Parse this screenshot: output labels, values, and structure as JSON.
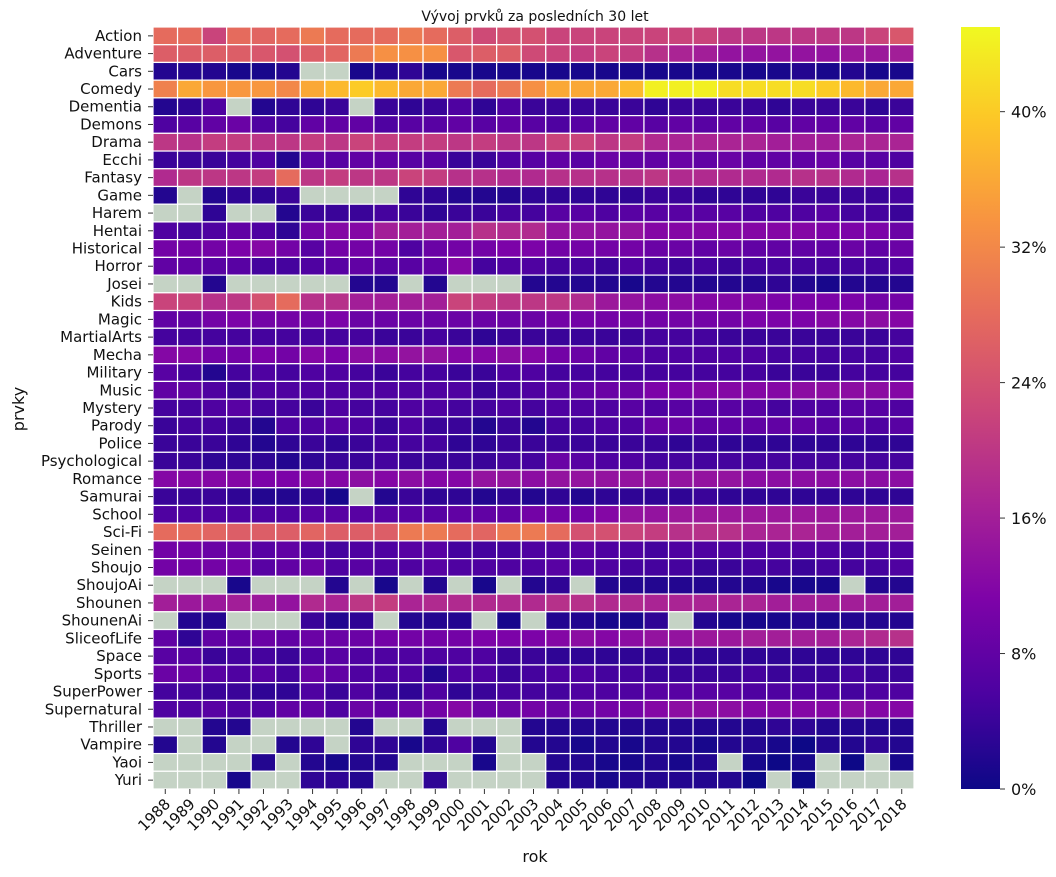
{
  "chart_data": {
    "type": "heatmap",
    "title": "Vývoj prvků za posledních 30 let",
    "xlabel": "rok",
    "ylabel": "prvky",
    "x_categories": [
      "1988",
      "1989",
      "1990",
      "1991",
      "1992",
      "1993",
      "1994",
      "1995",
      "1996",
      "1997",
      "1998",
      "1999",
      "2000",
      "2001",
      "2002",
      "2003",
      "2004",
      "2005",
      "2006",
      "2007",
      "2008",
      "2009",
      "2010",
      "2011",
      "2012",
      "2013",
      "2014",
      "2015",
      "2016",
      "2017",
      "2018"
    ],
    "y_categories": [
      "Action",
      "Adventure",
      "Cars",
      "Comedy",
      "Dementia",
      "Demons",
      "Drama",
      "Ecchi",
      "Fantasy",
      "Game",
      "Harem",
      "Hentai",
      "Historical",
      "Horror",
      "Josei",
      "Kids",
      "Magic",
      "MartialArts",
      "Mecha",
      "Military",
      "Music",
      "Mystery",
      "Parody",
      "Police",
      "Psychological",
      "Romance",
      "Samurai",
      "School",
      "Sci-Fi",
      "Seinen",
      "Shoujo",
      "ShoujoAi",
      "Shounen",
      "ShounenAi",
      "SliceofLife",
      "Space",
      "Sports",
      "SuperPower",
      "Supernatural",
      "Thriller",
      "Vampire",
      "Yaoi",
      "Yuri"
    ],
    "colorbar": {
      "colormap": "plasma",
      "vmin": 0,
      "vmax": 45,
      "ticks": [
        0,
        8,
        16,
        24,
        32,
        40
      ],
      "tick_labels": [
        "0%",
        "8%",
        "16%",
        "24%",
        "32%",
        "40%"
      ]
    },
    "missing_color": "#c5d3c5",
    "values": [
      [
        28,
        28,
        22,
        28,
        27,
        28,
        30,
        28,
        28,
        28,
        30,
        28,
        26,
        23,
        24,
        24,
        22,
        22,
        22,
        22,
        22,
        22,
        22,
        20,
        20,
        20,
        20,
        20,
        20,
        22,
        25
      ],
      [
        26,
        26,
        26,
        26,
        25,
        24,
        26,
        27,
        30,
        33,
        33,
        33,
        25,
        26,
        26,
        23,
        22,
        21,
        22,
        21,
        19,
        17,
        16,
        14,
        14,
        14,
        14,
        14,
        15,
        15,
        16
      ],
      [
        2,
        2,
        2,
        1,
        1,
        2,
        null,
        null,
        1,
        2,
        3,
        1,
        1,
        1,
        1,
        1,
        1,
        1,
        1,
        1,
        1,
        1,
        1,
        1,
        1,
        1,
        2,
        1,
        2,
        1,
        1
      ],
      [
        31,
        36,
        34,
        34,
        34,
        32,
        36,
        38,
        40,
        38,
        36,
        36,
        30,
        28,
        30,
        33,
        36,
        36,
        36,
        38,
        44,
        44,
        44,
        42,
        42,
        42,
        42,
        40,
        38,
        36,
        36
      ],
      [
        2,
        3,
        6,
        null,
        2,
        3,
        3,
        4,
        null,
        4,
        3,
        4,
        6,
        3,
        6,
        4,
        4,
        4,
        4,
        4,
        3,
        4,
        4,
        4,
        4,
        3,
        4,
        4,
        4,
        3,
        4
      ],
      [
        6,
        7,
        8,
        9,
        6,
        5,
        8,
        8,
        8,
        6,
        7,
        7,
        8,
        7,
        8,
        7,
        6,
        7,
        8,
        8,
        7,
        8,
        7,
        8,
        8,
        7,
        8,
        8,
        8,
        7,
        8
      ],
      [
        20,
        19,
        21,
        21,
        20,
        20,
        21,
        20,
        22,
        21,
        21,
        21,
        20,
        21,
        20,
        20,
        22,
        22,
        20,
        21,
        18,
        17,
        17,
        17,
        17,
        16,
        16,
        16,
        17,
        17,
        17
      ],
      [
        4,
        4,
        4,
        5,
        6,
        2,
        7,
        7,
        8,
        8,
        7,
        7,
        4,
        4,
        6,
        7,
        8,
        7,
        9,
        8,
        8,
        9,
        8,
        9,
        8,
        8,
        8,
        9,
        7,
        7,
        6
      ],
      [
        18,
        20,
        20,
        20,
        21,
        28,
        20,
        21,
        20,
        20,
        22,
        21,
        19,
        19,
        18,
        18,
        19,
        19,
        19,
        19,
        20,
        18,
        18,
        18,
        18,
        18,
        19,
        19,
        18,
        17,
        19
      ],
      [
        2,
        null,
        2,
        3,
        3,
        4,
        null,
        null,
        null,
        null,
        3,
        3,
        2,
        2,
        2,
        3,
        3,
        3,
        3,
        3,
        4,
        4,
        3,
        3,
        3,
        3,
        4,
        4,
        4,
        4,
        5
      ],
      [
        null,
        null,
        3,
        null,
        null,
        2,
        4,
        4,
        4,
        5,
        4,
        3,
        4,
        4,
        5,
        5,
        7,
        7,
        6,
        7,
        7,
        7,
        7,
        7,
        6,
        6,
        6,
        7,
        5,
        5,
        4
      ],
      [
        6,
        5,
        6,
        8,
        6,
        3,
        10,
        12,
        12,
        16,
        16,
        16,
        16,
        19,
        18,
        18,
        14,
        14,
        14,
        14,
        12,
        12,
        12,
        12,
        12,
        12,
        12,
        11,
        11,
        11,
        9
      ],
      [
        10,
        10,
        10,
        11,
        12,
        10,
        7,
        10,
        10,
        10,
        6,
        9,
        10,
        10,
        11,
        11,
        10,
        10,
        10,
        10,
        9,
        9,
        8,
        9,
        8,
        8,
        8,
        8,
        9,
        8,
        9
      ],
      [
        8,
        8,
        7,
        7,
        5,
        5,
        6,
        7,
        8,
        7,
        7,
        8,
        12,
        5,
        6,
        6,
        5,
        5,
        4,
        6,
        5,
        4,
        5,
        4,
        5,
        5,
        5,
        5,
        5,
        5,
        6
      ],
      [
        null,
        null,
        2,
        null,
        null,
        null,
        null,
        null,
        2,
        2,
        null,
        2,
        null,
        null,
        null,
        2,
        2,
        2,
        2,
        1,
        2,
        2,
        2,
        2,
        2,
        3,
        2,
        1,
        2,
        2,
        2
      ],
      [
        22,
        22,
        19,
        20,
        24,
        28,
        19,
        19,
        16,
        16,
        16,
        16,
        22,
        21,
        20,
        20,
        20,
        18,
        15,
        14,
        13,
        13,
        12,
        12,
        12,
        11,
        11,
        11,
        11,
        10,
        10
      ],
      [
        8,
        8,
        10,
        11,
        10,
        10,
        10,
        11,
        9,
        9,
        9,
        9,
        9,
        9,
        9,
        9,
        10,
        10,
        10,
        10,
        10,
        10,
        10,
        10,
        11,
        11,
        11,
        12,
        12,
        13,
        12
      ],
      [
        5,
        5,
        5,
        5,
        5,
        5,
        5,
        5,
        5,
        4,
        4,
        5,
        4,
        3,
        4,
        4,
        4,
        4,
        4,
        4,
        5,
        5,
        5,
        4,
        4,
        4,
        4,
        4,
        4,
        4,
        5
      ],
      [
        12,
        12,
        10,
        10,
        11,
        10,
        12,
        11,
        13,
        13,
        14,
        14,
        12,
        12,
        13,
        12,
        10,
        9,
        8,
        7,
        6,
        6,
        6,
        6,
        6,
        5,
        5,
        5,
        5,
        5,
        6
      ],
      [
        7,
        5,
        2,
        5,
        6,
        5,
        6,
        6,
        5,
        4,
        5,
        5,
        4,
        4,
        6,
        6,
        5,
        5,
        5,
        5,
        5,
        5,
        5,
        5,
        5,
        4,
        4,
        4,
        5,
        5,
        5
      ],
      [
        8,
        8,
        6,
        4,
        6,
        6,
        6,
        6,
        6,
        6,
        6,
        6,
        6,
        4,
        5,
        6,
        7,
        8,
        9,
        9,
        11,
        11,
        12,
        12,
        12,
        12,
        13,
        13,
        13,
        13,
        12
      ],
      [
        5,
        5,
        6,
        7,
        5,
        5,
        4,
        6,
        5,
        5,
        6,
        6,
        5,
        5,
        6,
        5,
        6,
        6,
        6,
        7,
        6,
        7,
        7,
        7,
        7,
        5,
        6,
        6,
        7,
        7,
        6
      ],
      [
        4,
        5,
        5,
        4,
        2,
        6,
        6,
        7,
        6,
        4,
        6,
        4,
        4,
        2,
        4,
        2,
        5,
        5,
        6,
        6,
        9,
        9,
        8,
        8,
        8,
        8,
        8,
        7,
        7,
        6,
        7
      ],
      [
        4,
        4,
        4,
        3,
        2,
        3,
        4,
        3,
        4,
        5,
        5,
        5,
        3,
        3,
        4,
        4,
        4,
        4,
        4,
        4,
        4,
        3,
        4,
        3,
        3,
        3,
        3,
        3,
        3,
        3,
        3
      ],
      [
        4,
        4,
        3,
        3,
        3,
        2,
        3,
        4,
        4,
        5,
        4,
        4,
        4,
        4,
        5,
        5,
        9,
        7,
        6,
        6,
        5,
        5,
        5,
        5,
        5,
        5,
        5,
        5,
        5,
        5,
        5
      ],
      [
        12,
        12,
        12,
        12,
        11,
        11,
        12,
        12,
        13,
        12,
        13,
        12,
        12,
        14,
        14,
        13,
        14,
        14,
        14,
        14,
        14,
        14,
        14,
        14,
        13,
        13,
        13,
        13,
        13,
        13,
        13
      ],
      [
        4,
        4,
        4,
        3,
        2,
        2,
        3,
        1,
        null,
        2,
        4,
        3,
        3,
        2,
        3,
        2,
        3,
        2,
        3,
        3,
        3,
        3,
        4,
        3,
        3,
        3,
        3,
        3,
        3,
        3,
        3
      ],
      [
        6,
        6,
        6,
        6,
        6,
        6,
        7,
        7,
        7,
        7,
        7,
        7,
        8,
        8,
        8,
        10,
        10,
        10,
        12,
        14,
        14,
        15,
        15,
        15,
        15,
        15,
        15,
        15,
        15,
        15,
        15
      ],
      [
        28,
        28,
        27,
        26,
        26,
        26,
        27,
        26,
        26,
        26,
        30,
        30,
        28,
        27,
        30,
        30,
        28,
        24,
        24,
        22,
        21,
        19,
        19,
        19,
        17,
        17,
        17,
        16,
        16,
        16,
        16
      ],
      [
        10,
        10,
        9,
        9,
        7,
        8,
        6,
        5,
        6,
        6,
        7,
        7,
        5,
        5,
        5,
        6,
        6,
        7,
        6,
        6,
        5,
        6,
        6,
        6,
        6,
        6,
        6,
        6,
        5,
        6,
        6
      ],
      [
        10,
        10,
        10,
        10,
        7,
        8,
        9,
        6,
        7,
        6,
        6,
        7,
        6,
        6,
        6,
        6,
        7,
        6,
        6,
        5,
        5,
        5,
        4,
        4,
        5,
        5,
        4,
        5,
        5,
        5,
        6
      ],
      [
        null,
        null,
        null,
        1,
        null,
        null,
        null,
        2,
        null,
        1,
        null,
        2,
        null,
        1,
        null,
        2,
        3,
        null,
        2,
        2,
        2,
        2,
        2,
        2,
        2,
        1,
        1,
        1,
        null,
        2,
        2
      ],
      [
        16,
        15,
        15,
        16,
        15,
        14,
        18,
        17,
        20,
        21,
        17,
        18,
        18,
        18,
        18,
        18,
        19,
        19,
        18,
        18,
        17,
        17,
        17,
        17,
        17,
        16,
        16,
        16,
        16,
        16,
        16
      ],
      [
        null,
        2,
        2,
        null,
        null,
        null,
        4,
        2,
        3,
        null,
        2,
        2,
        2,
        null,
        1,
        null,
        2,
        2,
        1,
        1,
        3,
        null,
        2,
        1,
        1,
        1,
        2,
        1,
        2,
        2,
        2
      ],
      [
        8,
        3,
        8,
        8,
        9,
        8,
        9,
        9,
        9,
        10,
        10,
        10,
        10,
        11,
        11,
        11,
        12,
        13,
        12,
        13,
        14,
        14,
        15,
        15,
        16,
        16,
        16,
        16,
        17,
        18,
        19
      ],
      [
        7,
        7,
        4,
        5,
        5,
        4,
        6,
        7,
        6,
        6,
        6,
        6,
        6,
        6,
        4,
        4,
        3,
        3,
        3,
        3,
        3,
        3,
        3,
        3,
        3,
        3,
        3,
        3,
        3,
        3,
        3
      ],
      [
        9,
        9,
        7,
        6,
        7,
        5,
        9,
        8,
        6,
        6,
        6,
        2,
        6,
        6,
        4,
        5,
        6,
        6,
        5,
        5,
        4,
        4,
        4,
        4,
        5,
        4,
        4,
        4,
        5,
        4,
        4
      ],
      [
        5,
        5,
        4,
        4,
        3,
        3,
        6,
        4,
        6,
        4,
        3,
        6,
        3,
        4,
        5,
        5,
        5,
        6,
        6,
        6,
        7,
        7,
        7,
        7,
        6,
        6,
        6,
        6,
        5,
        6,
        6
      ],
      [
        6,
        6,
        7,
        6,
        6,
        8,
        8,
        6,
        9,
        8,
        9,
        10,
        12,
        9,
        9,
        10,
        9,
        9,
        10,
        10,
        12,
        13,
        13,
        13,
        12,
        12,
        12,
        12,
        13,
        12,
        12
      ],
      [
        null,
        null,
        2,
        2,
        null,
        null,
        null,
        null,
        2,
        null,
        null,
        2,
        null,
        null,
        null,
        2,
        2,
        2,
        2,
        2,
        2,
        2,
        2,
        2,
        2,
        3,
        3,
        2,
        2,
        2,
        2
      ],
      [
        2,
        null,
        2,
        null,
        null,
        2,
        3,
        null,
        3,
        3,
        1,
        3,
        6,
        2,
        null,
        2,
        2,
        1,
        2,
        1,
        2,
        2,
        1,
        2,
        2,
        1,
        0,
        2,
        2,
        3,
        2
      ],
      [
        null,
        null,
        null,
        null,
        2,
        null,
        2,
        1,
        2,
        2,
        null,
        null,
        null,
        1,
        null,
        null,
        2,
        2,
        1,
        1,
        2,
        1,
        2,
        null,
        1,
        0,
        1,
        null,
        0,
        null,
        1
      ],
      [
        null,
        null,
        null,
        1,
        null,
        null,
        3,
        3,
        2,
        null,
        null,
        3,
        null,
        null,
        null,
        null,
        2,
        2,
        1,
        2,
        2,
        2,
        2,
        2,
        0,
        null,
        0,
        null,
        null,
        null,
        null
      ]
    ]
  }
}
